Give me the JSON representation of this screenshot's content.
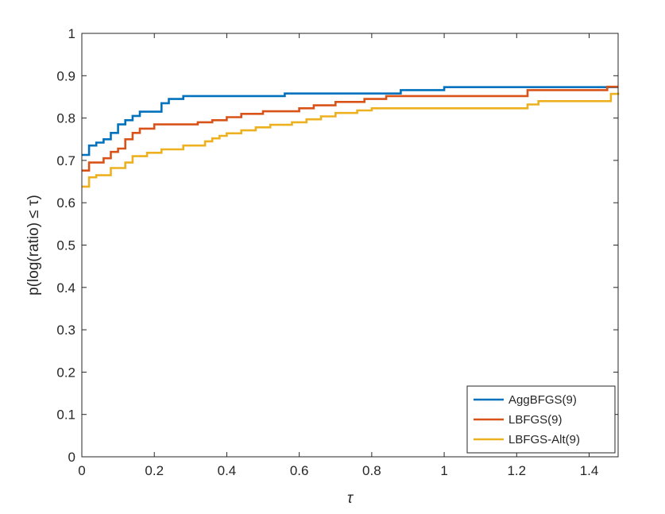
{
  "chart_data": {
    "type": "line",
    "title": "",
    "xlabel": "τ",
    "ylabel": "p(log(ratio) ≤ τ)",
    "xlim": [
      0,
      1.48
    ],
    "ylim": [
      0,
      1
    ],
    "xticks": [
      0,
      0.2,
      0.4,
      0.6,
      0.8,
      1,
      1.2,
      1.4
    ],
    "xtick_labels": [
      "0",
      "0.2",
      "0.4",
      "0.6",
      "0.8",
      "1",
      "1.2",
      "1.4"
    ],
    "yticks": [
      0,
      0.1,
      0.2,
      0.3,
      0.4,
      0.5,
      0.6,
      0.7,
      0.8,
      0.9,
      1
    ],
    "ytick_labels": [
      "0",
      "0.1",
      "0.2",
      "0.3",
      "0.4",
      "0.5",
      "0.6",
      "0.7",
      "0.8",
      "0.9",
      "1"
    ],
    "grid": false,
    "legend_position": "bottom-right",
    "step": true,
    "series": [
      {
        "name": "AggBFGS(9)",
        "color": "#0072BD",
        "x": [
          0,
          0.02,
          0.04,
          0.06,
          0.08,
          0.1,
          0.12,
          0.14,
          0.16,
          0.22,
          0.24,
          0.28,
          0.56,
          0.88,
          1.0,
          1.48
        ],
        "y": [
          0.713,
          0.735,
          0.742,
          0.75,
          0.765,
          0.785,
          0.795,
          0.805,
          0.815,
          0.835,
          0.845,
          0.852,
          0.858,
          0.866,
          0.873,
          0.873
        ]
      },
      {
        "name": "LBFGS(9)",
        "color": "#D95319",
        "x": [
          0,
          0.02,
          0.06,
          0.08,
          0.1,
          0.12,
          0.14,
          0.16,
          0.2,
          0.32,
          0.36,
          0.4,
          0.44,
          0.5,
          0.6,
          0.64,
          0.7,
          0.78,
          0.84,
          1.23,
          1.45,
          1.48
        ],
        "y": [
          0.676,
          0.695,
          0.705,
          0.72,
          0.728,
          0.75,
          0.765,
          0.775,
          0.785,
          0.79,
          0.795,
          0.802,
          0.81,
          0.816,
          0.823,
          0.83,
          0.838,
          0.845,
          0.852,
          0.866,
          0.874,
          0.874
        ]
      },
      {
        "name": "LBFGS-Alt(9)",
        "color": "#EDB120",
        "x": [
          0,
          0.02,
          0.04,
          0.08,
          0.12,
          0.14,
          0.18,
          0.22,
          0.28,
          0.34,
          0.36,
          0.38,
          0.4,
          0.44,
          0.48,
          0.52,
          0.58,
          0.62,
          0.66,
          0.7,
          0.76,
          0.8,
          1.23,
          1.26,
          1.46,
          1.48
        ],
        "y": [
          0.638,
          0.66,
          0.665,
          0.682,
          0.695,
          0.71,
          0.718,
          0.726,
          0.735,
          0.745,
          0.752,
          0.758,
          0.764,
          0.771,
          0.778,
          0.784,
          0.79,
          0.797,
          0.804,
          0.812,
          0.818,
          0.823,
          0.832,
          0.84,
          0.857,
          0.86
        ]
      }
    ]
  }
}
